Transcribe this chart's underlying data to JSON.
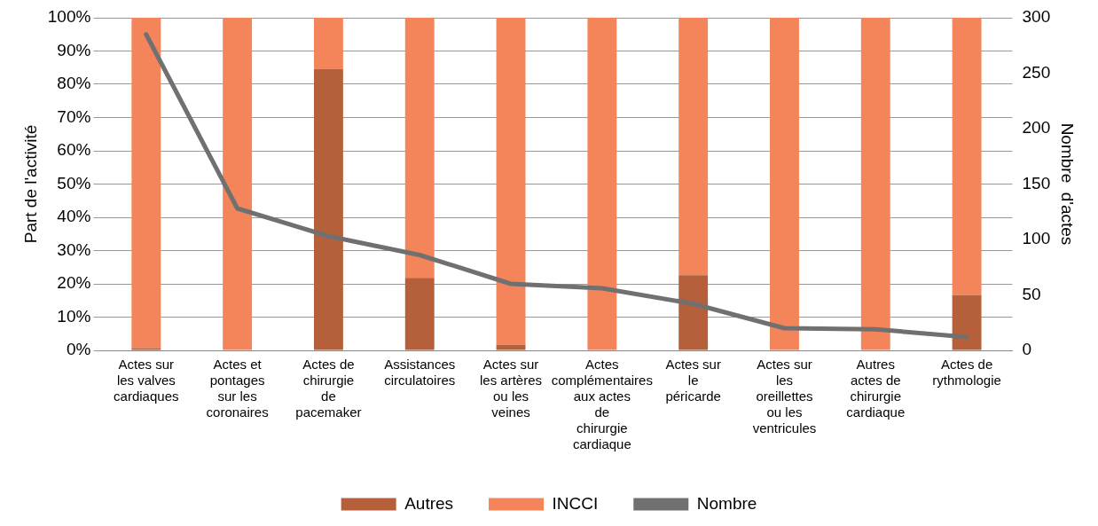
{
  "chart_data": {
    "type": "bar",
    "stacked": true,
    "categories": [
      "Actes sur les valves cardiaques",
      "Actes et pontages sur les coronaires",
      "Actes de chirurgie de pacemaker",
      "Assistances circulatoires",
      "Actes sur les artères ou les veines",
      "Actes complémentaires aux actes de chirurgie cardiaque",
      "Actes sur le péricarde",
      "Actes sur les oreillettes ou les ventricules",
      "Autres actes de chirurgie cardiaque",
      "Actes de rythmologie"
    ],
    "series": [
      {
        "name": "Autres",
        "color": "#b5603a",
        "values": [
          0.7,
          0,
          84.6,
          21.8,
          1.7,
          0,
          22.6,
          0,
          0,
          16.6
        ]
      },
      {
        "name": "INCCI",
        "color": "#f4845a",
        "values": [
          99.3,
          100,
          15.4,
          78.2,
          98.3,
          100,
          77.4,
          100,
          100,
          83.4
        ]
      },
      {
        "name": "Nombre",
        "type": "line",
        "axis": "y2",
        "color": "#707070",
        "values": [
          285,
          128,
          103,
          86,
          60,
          56,
          42,
          20,
          19,
          12
        ]
      }
    ],
    "ylabel": "Part de l'activité",
    "y2label": "Nombre  d'actes",
    "ylim": [
      0,
      100
    ],
    "yticks": [
      {
        "value": 0,
        "label": "0%"
      },
      {
        "value": 10,
        "label": "10%"
      },
      {
        "value": 20,
        "label": "20%"
      },
      {
        "value": 30,
        "label": "30%"
      },
      {
        "value": 40,
        "label": "40%"
      },
      {
        "value": 50,
        "label": "50%"
      },
      {
        "value": 60,
        "label": "60%"
      },
      {
        "value": 70,
        "label": "70%"
      },
      {
        "value": 80,
        "label": "80%"
      },
      {
        "value": 90,
        "label": "90%"
      },
      {
        "value": 100,
        "label": "100%"
      }
    ],
    "y2lim": [
      0,
      300
    ],
    "y2ticks": [
      0,
      50,
      100,
      150,
      200,
      250,
      300
    ],
    "grid": "y",
    "legend": "bottom",
    "marker": "none"
  }
}
